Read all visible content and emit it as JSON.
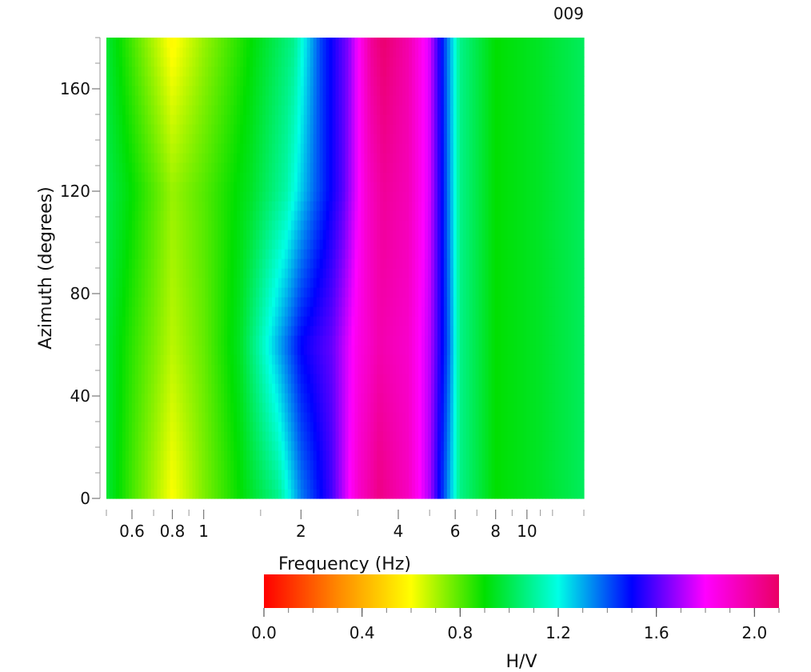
{
  "chart_data": {
    "type": "heatmap",
    "title": "009",
    "xlabel": "Frequency (Hz)",
    "ylabel": "Azimuth (degrees)",
    "x_scale": "log",
    "xlim": [
      0.5,
      15
    ],
    "ylim": [
      0,
      180
    ],
    "x_major_ticks": [
      {
        "value": 0.6,
        "label": "0.6"
      },
      {
        "value": 0.8,
        "label": "0.8"
      },
      {
        "value": 1,
        "label": "1"
      },
      {
        "value": 2,
        "label": "2"
      },
      {
        "value": 4,
        "label": "4"
      },
      {
        "value": 6,
        "label": "6"
      },
      {
        "value": 8,
        "label": "8"
      },
      {
        "value": 10,
        "label": "10"
      }
    ],
    "x_minor_ticks": [
      0.5,
      0.7,
      0.9,
      1.5,
      3,
      5,
      7,
      9,
      11,
      12,
      15
    ],
    "y_major_ticks": [
      {
        "value": 0,
        "label": "0"
      },
      {
        "value": 40,
        "label": "40"
      },
      {
        "value": 80,
        "label": "80"
      },
      {
        "value": 120,
        "label": "120"
      },
      {
        "value": 160,
        "label": "160"
      }
    ],
    "y_minor_step": 10,
    "colorbar": {
      "label": "H/V",
      "range": [
        0.0,
        2.1
      ],
      "ticks": [
        {
          "value": 0.0,
          "label": "0.0"
        },
        {
          "value": 0.4,
          "label": "0.4"
        },
        {
          "value": 0.8,
          "label": "0.8"
        },
        {
          "value": 1.2,
          "label": "1.2"
        },
        {
          "value": 1.6,
          "label": "1.6"
        },
        {
          "value": 2.0,
          "label": "2.0"
        }
      ],
      "minor_step": 0.1,
      "colors": [
        "#ff0000",
        "#ff8800",
        "#ffff00",
        "#00e000",
        "#00ffe6",
        "#0000ff",
        "#ff00ff",
        "#ea0064"
      ]
    },
    "columns_by_azimuth": {
      "0": [
        {
          "x": 0.5,
          "v": 0.97
        },
        {
          "x": 0.6,
          "v": 0.82
        },
        {
          "x": 0.8,
          "v": 0.6
        },
        {
          "x": 1.0,
          "v": 0.75
        },
        {
          "x": 1.3,
          "v": 0.9
        },
        {
          "x": 1.7,
          "v": 1.08
        },
        {
          "x": 2.0,
          "v": 1.35
        },
        {
          "x": 2.5,
          "v": 1.58
        },
        {
          "x": 3.0,
          "v": 1.9
        },
        {
          "x": 3.5,
          "v": 2.04
        },
        {
          "x": 4.3,
          "v": 1.92
        },
        {
          "x": 5.0,
          "v": 1.7
        },
        {
          "x": 5.6,
          "v": 1.38
        },
        {
          "x": 6.2,
          "v": 1.08
        },
        {
          "x": 8.0,
          "v": 0.9
        },
        {
          "x": 11.0,
          "v": 0.95
        },
        {
          "x": 15.0,
          "v": 1.02
        }
      ],
      "60": [
        {
          "x": 0.5,
          "v": 0.97
        },
        {
          "x": 0.6,
          "v": 0.85
        },
        {
          "x": 0.8,
          "v": 0.68
        },
        {
          "x": 1.0,
          "v": 0.78
        },
        {
          "x": 1.3,
          "v": 0.95
        },
        {
          "x": 1.6,
          "v": 1.22
        },
        {
          "x": 2.0,
          "v": 1.5
        },
        {
          "x": 2.5,
          "v": 1.62
        },
        {
          "x": 3.0,
          "v": 1.85
        },
        {
          "x": 3.5,
          "v": 1.96
        },
        {
          "x": 4.3,
          "v": 1.9
        },
        {
          "x": 5.0,
          "v": 1.72
        },
        {
          "x": 5.7,
          "v": 1.4
        },
        {
          "x": 6.2,
          "v": 1.08
        },
        {
          "x": 8.0,
          "v": 0.9
        },
        {
          "x": 11.0,
          "v": 0.95
        },
        {
          "x": 15.0,
          "v": 1.02
        }
      ],
      "120": [
        {
          "x": 0.5,
          "v": 1.0
        },
        {
          "x": 0.6,
          "v": 0.9
        },
        {
          "x": 0.8,
          "v": 0.72
        },
        {
          "x": 1.0,
          "v": 0.8
        },
        {
          "x": 1.4,
          "v": 0.95
        },
        {
          "x": 1.8,
          "v": 1.12
        },
        {
          "x": 2.2,
          "v": 1.38
        },
        {
          "x": 2.7,
          "v": 1.6
        },
        {
          "x": 3.2,
          "v": 1.9
        },
        {
          "x": 3.6,
          "v": 2.0
        },
        {
          "x": 4.3,
          "v": 1.94
        },
        {
          "x": 5.0,
          "v": 1.75
        },
        {
          "x": 5.6,
          "v": 1.42
        },
        {
          "x": 6.2,
          "v": 1.08
        },
        {
          "x": 8.0,
          "v": 0.9
        },
        {
          "x": 11.0,
          "v": 0.95
        },
        {
          "x": 15.0,
          "v": 1.02
        }
      ],
      "180": [
        {
          "x": 0.5,
          "v": 0.97
        },
        {
          "x": 0.6,
          "v": 0.82
        },
        {
          "x": 0.8,
          "v": 0.58
        },
        {
          "x": 1.0,
          "v": 0.72
        },
        {
          "x": 1.4,
          "v": 0.9
        },
        {
          "x": 1.9,
          "v": 1.08
        },
        {
          "x": 2.3,
          "v": 1.42
        },
        {
          "x": 2.8,
          "v": 1.65
        },
        {
          "x": 3.3,
          "v": 2.0
        },
        {
          "x": 3.6,
          "v": 2.08
        },
        {
          "x": 4.3,
          "v": 1.96
        },
        {
          "x": 5.0,
          "v": 1.75
        },
        {
          "x": 5.6,
          "v": 1.4
        },
        {
          "x": 6.2,
          "v": 1.08
        },
        {
          "x": 8.0,
          "v": 0.9
        },
        {
          "x": 11.0,
          "v": 0.95
        },
        {
          "x": 15.0,
          "v": 1.02
        }
      ]
    }
  }
}
